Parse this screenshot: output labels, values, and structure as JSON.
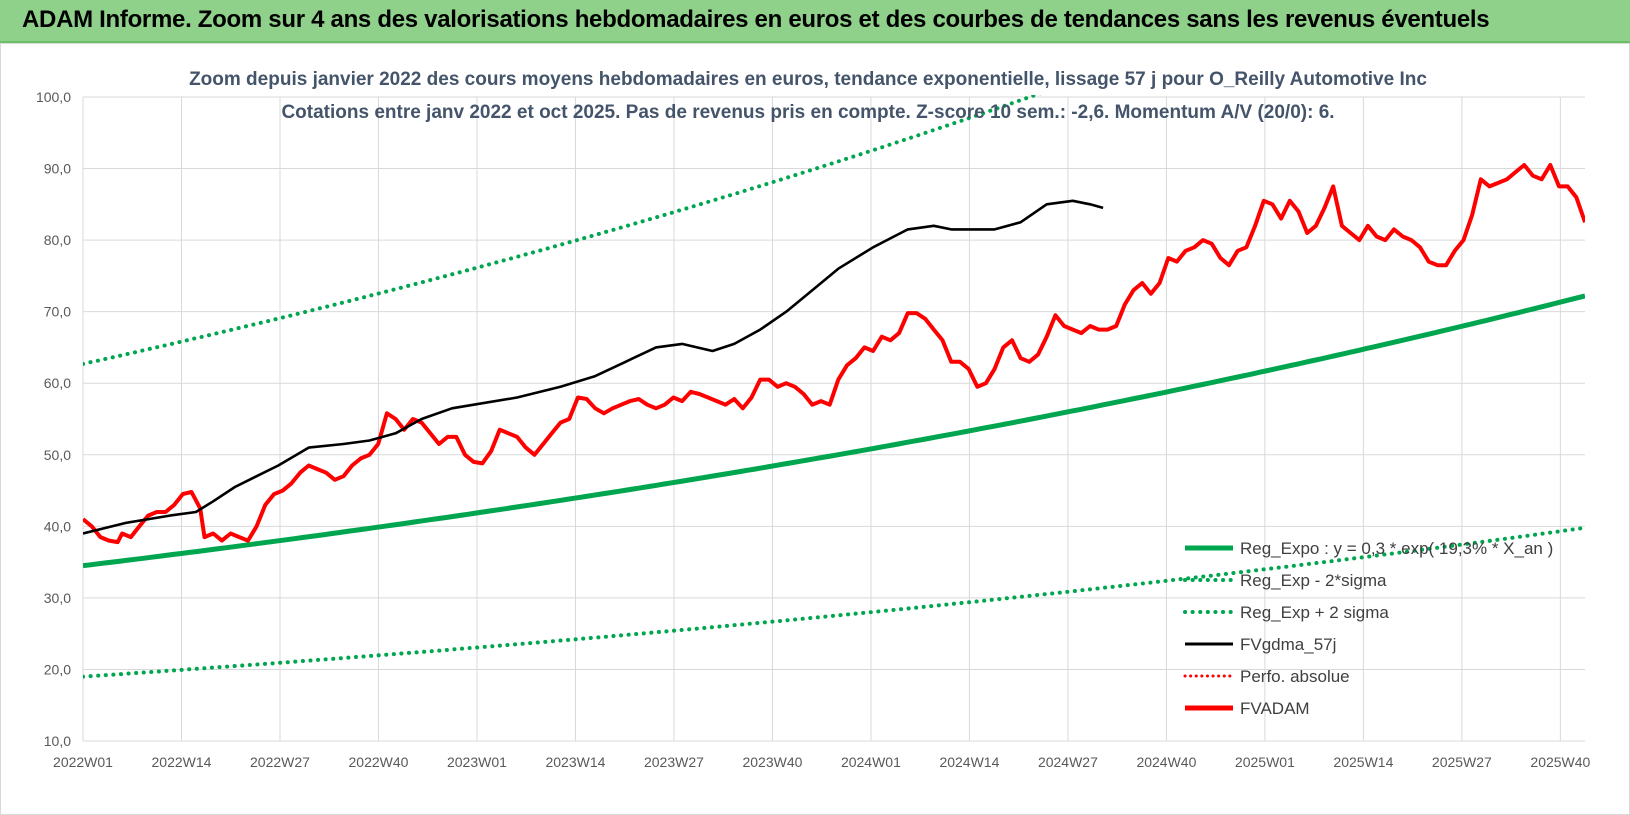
{
  "header": {
    "title": "ADAM Informe. Zoom sur 4 ans des valorisations hebdomadaires en euros et des courbes de tendances sans les revenus éventuels"
  },
  "chart_data": {
    "type": "line",
    "title": "Zoom depuis janvier 2022 des cours moyens hebdomadaires en euros, tendance exponentielle, lissage 57 j pour O_Reilly Automotive Inc",
    "subtitle": "Cotations entre janv 2022 et oct 2025. Pas de revenus pris en compte. Z-score 10 sem.: -2,6.  Momentum A/V (20/0): 6.",
    "xlabel": "",
    "ylabel": "",
    "ylim": [
      10,
      100
    ],
    "y_ticks": [
      "10,0",
      "20,0",
      "30,0",
      "40,0",
      "50,0",
      "60,0",
      "70,0",
      "80,0",
      "90,0",
      "100,0"
    ],
    "x_ticks": [
      "2022W01",
      "2022W14",
      "2022W27",
      "2022W40",
      "2023W01",
      "2023W14",
      "2023W27",
      "2023W40",
      "2024W01",
      "2024W14",
      "2024W27",
      "2024W40",
      "2025W01",
      "2025W14",
      "2025W27",
      "2025W40"
    ],
    "x_range_weeks": [
      0,
      199
    ],
    "grid": true,
    "legend_position": "bottom-right",
    "colors": {
      "trend": "#00a64f",
      "band": "#00a64f",
      "smooth": "#000000",
      "perf": "#ff0000",
      "price": "#ff0000"
    },
    "series": [
      {
        "name": "Reg_Expo : y = 0,3 * exp( 19,3% * X_an )",
        "style": "solid-thick",
        "values": [
          [
            0,
            34.5
          ],
          [
            199,
            72.2
          ]
        ]
      },
      {
        "name": "Reg_Exp - 2*sigma",
        "style": "dotted",
        "values": [
          [
            0,
            19.0
          ],
          [
            199,
            39.8
          ]
        ]
      },
      {
        "name": "Reg_Exp + 2 sigma",
        "style": "dotted",
        "values": [
          [
            0,
            62.7
          ],
          [
            199,
            131.5
          ]
        ]
      },
      {
        "name": "FVgdma_57j",
        "style": "solid",
        "values": [
          [
            0,
            39.0
          ],
          [
            10,
            40.5
          ],
          [
            20,
            41.5
          ],
          [
            26,
            42.0
          ],
          [
            30,
            43.5
          ],
          [
            35,
            45.5
          ],
          [
            40,
            47.0
          ],
          [
            45,
            48.5
          ],
          [
            52,
            51.0
          ],
          [
            60,
            51.5
          ],
          [
            66,
            52.0
          ],
          [
            72,
            53.0
          ],
          [
            78,
            55.0
          ],
          [
            85,
            56.5
          ],
          [
            90,
            57.0
          ],
          [
            100,
            58.0
          ],
          [
            110,
            59.5
          ],
          [
            118,
            61.0
          ],
          [
            125,
            63.0
          ],
          [
            132,
            65.0
          ],
          [
            138,
            65.5
          ],
          [
            145,
            64.5
          ],
          [
            150,
            65.5
          ],
          [
            156,
            67.5
          ],
          [
            162,
            70.0
          ],
          [
            168,
            73.0
          ],
          [
            174,
            76.0
          ],
          [
            182,
            79.0
          ],
          [
            190,
            81.5
          ],
          [
            196,
            82.0
          ],
          [
            200,
            81.5
          ],
          [
            210,
            81.5
          ],
          [
            216,
            82.5
          ],
          [
            222,
            85.0
          ],
          [
            228,
            85.5
          ],
          [
            232,
            85.0
          ],
          [
            235,
            84.5
          ]
        ]
      },
      {
        "name": "Perfo. absolue",
        "style": "dotted",
        "values": []
      },
      {
        "name": "FVADAM",
        "style": "solid-thick",
        "values": [
          [
            0,
            41.0
          ],
          [
            2,
            40.0
          ],
          [
            4,
            38.5
          ],
          [
            6,
            38.0
          ],
          [
            8,
            37.8
          ],
          [
            9,
            39.0
          ],
          [
            11,
            38.5
          ],
          [
            13,
            40.0
          ],
          [
            15,
            41.5
          ],
          [
            17,
            42.0
          ],
          [
            19,
            42.0
          ],
          [
            21,
            43.0
          ],
          [
            23,
            44.5
          ],
          [
            25,
            44.8
          ],
          [
            27,
            42.5
          ],
          [
            28,
            38.5
          ],
          [
            30,
            39.0
          ],
          [
            32,
            38.0
          ],
          [
            34,
            39.0
          ],
          [
            36,
            38.5
          ],
          [
            38,
            38.0
          ],
          [
            40,
            40.0
          ],
          [
            42,
            43.0
          ],
          [
            44,
            44.5
          ],
          [
            46,
            45.0
          ],
          [
            48,
            46.0
          ],
          [
            50,
            47.5
          ],
          [
            52,
            48.5
          ],
          [
            54,
            48.0
          ],
          [
            56,
            47.5
          ],
          [
            58,
            46.5
          ],
          [
            60,
            47.0
          ],
          [
            62,
            48.5
          ],
          [
            64,
            49.5
          ],
          [
            66,
            50.0
          ],
          [
            68,
            51.5
          ],
          [
            70,
            55.8
          ],
          [
            72,
            55.0
          ],
          [
            74,
            53.5
          ],
          [
            76,
            55.0
          ],
          [
            78,
            54.5
          ],
          [
            80,
            53.0
          ],
          [
            82,
            51.5
          ],
          [
            84,
            52.5
          ],
          [
            86,
            52.5
          ],
          [
            88,
            50.0
          ],
          [
            90,
            49.0
          ],
          [
            92,
            48.8
          ],
          [
            94,
            50.5
          ],
          [
            96,
            53.5
          ],
          [
            98,
            53.0
          ],
          [
            100,
            52.5
          ],
          [
            102,
            51.0
          ],
          [
            104,
            50.0
          ],
          [
            106,
            51.5
          ],
          [
            108,
            53.0
          ],
          [
            110,
            54.5
          ],
          [
            112,
            55.0
          ],
          [
            114,
            58.0
          ],
          [
            116,
            57.8
          ],
          [
            118,
            56.5
          ],
          [
            120,
            55.8
          ],
          [
            122,
            56.5
          ],
          [
            124,
            57.0
          ],
          [
            126,
            57.5
          ],
          [
            128,
            57.8
          ],
          [
            130,
            57.0
          ],
          [
            132,
            56.5
          ],
          [
            134,
            57.0
          ],
          [
            136,
            58.0
          ],
          [
            138,
            57.5
          ],
          [
            140,
            58.8
          ],
          [
            142,
            58.5
          ],
          [
            144,
            58.0
          ],
          [
            146,
            57.5
          ],
          [
            148,
            57.0
          ],
          [
            150,
            57.8
          ],
          [
            152,
            56.5
          ],
          [
            154,
            58.0
          ],
          [
            156,
            60.5
          ],
          [
            158,
            60.5
          ],
          [
            160,
            59.5
          ],
          [
            162,
            60.0
          ],
          [
            164,
            59.5
          ],
          [
            166,
            58.5
          ],
          [
            168,
            57.0
          ],
          [
            170,
            57.5
          ],
          [
            172,
            57.0
          ],
          [
            174,
            60.5
          ],
          [
            176,
            62.5
          ],
          [
            178,
            63.5
          ],
          [
            180,
            65.0
          ],
          [
            182,
            64.5
          ],
          [
            184,
            66.5
          ],
          [
            186,
            66.0
          ],
          [
            188,
            67.0
          ],
          [
            190,
            69.8
          ],
          [
            192,
            69.8
          ],
          [
            194,
            69.0
          ],
          [
            196,
            67.5
          ],
          [
            198,
            66.0
          ],
          [
            200,
            63.0
          ],
          [
            202,
            63.0
          ],
          [
            204,
            62.0
          ],
          [
            206,
            59.5
          ],
          [
            208,
            60.0
          ],
          [
            210,
            62.0
          ],
          [
            212,
            65.0
          ],
          [
            214,
            66.0
          ],
          [
            216,
            63.5
          ],
          [
            218,
            63.0
          ],
          [
            220,
            64.0
          ],
          [
            222,
            66.5
          ],
          [
            224,
            69.5
          ],
          [
            226,
            68.0
          ],
          [
            228,
            67.5
          ],
          [
            230,
            67.0
          ],
          [
            232,
            68.0
          ],
          [
            234,
            67.5
          ],
          [
            236,
            67.5
          ],
          [
            238,
            68.0
          ],
          [
            240,
            71.0
          ],
          [
            242,
            73.0
          ],
          [
            244,
            74.0
          ],
          [
            246,
            72.5
          ],
          [
            248,
            74.0
          ],
          [
            250,
            77.5
          ],
          [
            252,
            77.0
          ],
          [
            254,
            78.5
          ],
          [
            256,
            79.0
          ],
          [
            258,
            80.0
          ],
          [
            260,
            79.5
          ],
          [
            262,
            77.5
          ],
          [
            264,
            76.5
          ],
          [
            266,
            78.5
          ],
          [
            268,
            79.0
          ],
          [
            270,
            82.0
          ],
          [
            272,
            85.5
          ],
          [
            274,
            85.0
          ],
          [
            276,
            83.0
          ],
          [
            278,
            85.5
          ],
          [
            280,
            84.0
          ],
          [
            282,
            81.0
          ],
          [
            284,
            82.0
          ],
          [
            286,
            84.5
          ],
          [
            288,
            87.5
          ],
          [
            290,
            82.0
          ],
          [
            292,
            81.0
          ],
          [
            294,
            80.0
          ],
          [
            296,
            82.0
          ],
          [
            298,
            80.5
          ],
          [
            300,
            80.0
          ],
          [
            302,
            81.5
          ],
          [
            304,
            80.5
          ],
          [
            306,
            80.0
          ],
          [
            308,
            79.0
          ],
          [
            310,
            77.0
          ],
          [
            312,
            76.5
          ],
          [
            314,
            76.5
          ],
          [
            316,
            78.5
          ],
          [
            318,
            80.0
          ],
          [
            320,
            83.5
          ],
          [
            322,
            88.5
          ],
          [
            324,
            87.5
          ],
          [
            326,
            88.0
          ],
          [
            328,
            88.5
          ],
          [
            330,
            89.5
          ],
          [
            332,
            90.5
          ],
          [
            334,
            89.0
          ],
          [
            336,
            88.5
          ],
          [
            338,
            90.5
          ],
          [
            340,
            87.5
          ],
          [
            342,
            87.5
          ],
          [
            344,
            86.0
          ],
          [
            346,
            82.5
          ]
        ]
      }
    ]
  }
}
